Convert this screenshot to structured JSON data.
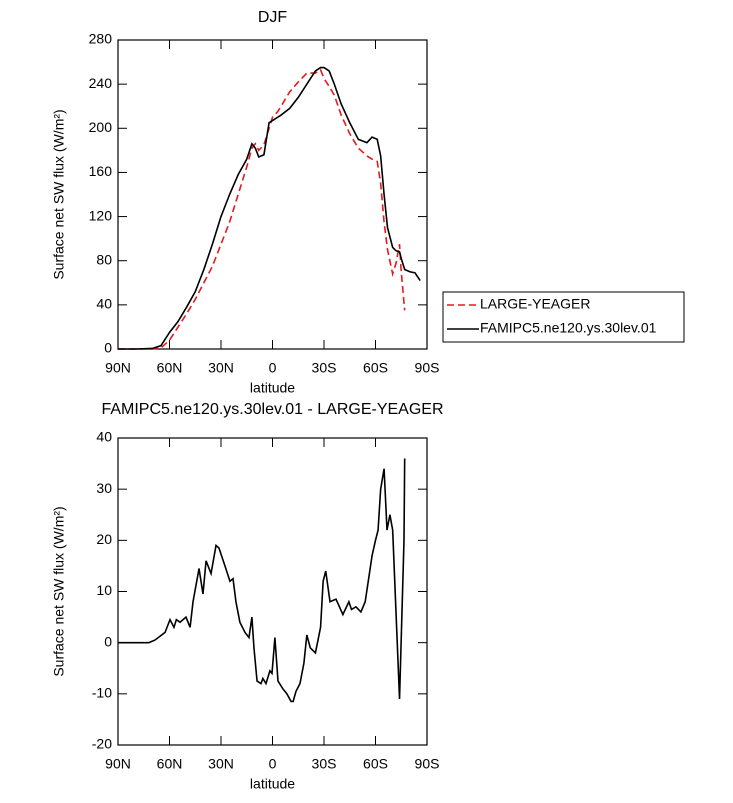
{
  "chart_data": [
    {
      "type": "line",
      "title": "DJF",
      "xlabel": "latitude",
      "ylabel": "Surface net SW flux (W/m²)",
      "x": [
        90,
        80,
        70,
        65,
        60,
        55,
        50,
        45,
        40,
        35,
        30,
        25,
        20,
        15,
        12,
        10,
        8,
        5,
        2,
        0,
        -3,
        -5,
        -10,
        -15,
        -20,
        -25,
        -28,
        -30,
        -33,
        -36,
        -40,
        -45,
        -50,
        -55,
        -58,
        -61,
        -63,
        -65,
        -67,
        -70,
        -72,
        -74,
        -75,
        -77,
        -80,
        -83,
        -86
      ],
      "series": [
        {
          "name": "LARGE-YEAGER",
          "color": "#e8191c",
          "dash": true,
          "values": [
            0,
            0,
            0,
            1,
            8,
            20,
            32,
            45,
            60,
            75,
            95,
            115,
            140,
            165,
            182,
            186,
            180,
            185,
            200,
            210,
            215,
            220,
            233,
            242,
            250,
            250,
            253,
            245,
            238,
            230,
            212,
            195,
            182,
            175,
            172,
            170,
            150,
            115,
            90,
            68,
            78,
            95,
            70,
            35,
            null,
            null,
            null
          ]
        },
        {
          "name": "FAMIPC5.ne120.ys.30lev.01",
          "color": "#000000",
          "dash": false,
          "values": [
            0,
            0,
            0.5,
            3,
            15,
            25,
            38,
            52,
            72,
            95,
            120,
            140,
            158,
            172,
            186,
            182,
            174,
            176,
            205,
            207,
            210,
            212,
            218,
            228,
            240,
            252,
            255,
            255,
            252,
            240,
            222,
            205,
            190,
            187,
            192,
            190,
            175,
            140,
            110,
            92,
            89,
            88,
            82,
            72,
            70,
            69,
            62
          ]
        }
      ],
      "xlim": [
        90,
        -90
      ],
      "xticks": [
        {
          "value": 90,
          "label": "90N"
        },
        {
          "value": 60,
          "label": "60N"
        },
        {
          "value": 30,
          "label": "30N"
        },
        0,
        {
          "value": -30,
          "label": "30S"
        },
        {
          "value": -60,
          "label": "60S"
        },
        {
          "value": -90,
          "label": "90S"
        }
      ],
      "ylim": [
        0,
        280
      ],
      "yticks": [
        0,
        40,
        80,
        120,
        160,
        200,
        240,
        280
      ],
      "legend": "right"
    },
    {
      "type": "line",
      "title": "FAMIPC5.ne120.ys.30lev.01 - LARGE-YEAGER",
      "xlabel": "latitude",
      "ylabel": "Surface net SW flux (W/m²)",
      "x": [
        90,
        80,
        72,
        68.5,
        62.6,
        59.7,
        57.4,
        56,
        53.9,
        50.4,
        48,
        46.3,
        42.8,
        40.5,
        38.7,
        35.8,
        32.9,
        31.2,
        27.7,
        24.8,
        23,
        21.3,
        19,
        16,
        13.7,
        12,
        10.8,
        9,
        6.7,
        5.6,
        3.8,
        1.5,
        0.3,
        -1.4,
        -3.2,
        -6,
        -8.4,
        -10.8,
        -12,
        -13.7,
        -16,
        -18.3,
        -20,
        -22,
        -25,
        -28,
        -29.5,
        -31,
        -33.5,
        -37,
        -41,
        -44.5,
        -46,
        -48.6,
        -51.5,
        -54,
        -58,
        -60,
        -61.5,
        -63,
        -65,
        -66.7,
        -68.4,
        -70,
        -74,
        -76.6,
        -77
      ],
      "series": [
        {
          "color": "#000000",
          "dash": false,
          "values": [
            0,
            0,
            0,
            0.5,
            2,
            4.5,
            3,
            4.5,
            4,
            5,
            3,
            8,
            14.5,
            9.5,
            16,
            13.5,
            19,
            18.5,
            15,
            12,
            12.5,
            8,
            4,
            2,
            1,
            5,
            -1,
            -7.5,
            -8,
            -7,
            -8,
            -5.5,
            -6,
            1,
            -7.5,
            -9,
            -10,
            -11.5,
            -11.5,
            -9.5,
            -8,
            -4,
            1.5,
            -1,
            -2,
            3,
            12,
            14,
            8,
            8.5,
            5.5,
            8,
            6.5,
            7,
            6,
            8,
            17,
            20,
            22,
            30,
            34,
            22,
            25,
            22,
            -11,
            20,
            36
          ]
        }
      ],
      "xlim": [
        90,
        -90
      ],
      "xticks": [
        {
          "value": 90,
          "label": "90N"
        },
        {
          "value": 60,
          "label": "60N"
        },
        {
          "value": 30,
          "label": "30N"
        },
        0,
        {
          "value": -30,
          "label": "30S"
        },
        {
          "value": -60,
          "label": "60S"
        },
        {
          "value": -90,
          "label": "90S"
        }
      ],
      "ylim": [
        -20,
        40
      ],
      "yticks": [
        -20,
        -10,
        0,
        10,
        20,
        30,
        40
      ]
    }
  ]
}
